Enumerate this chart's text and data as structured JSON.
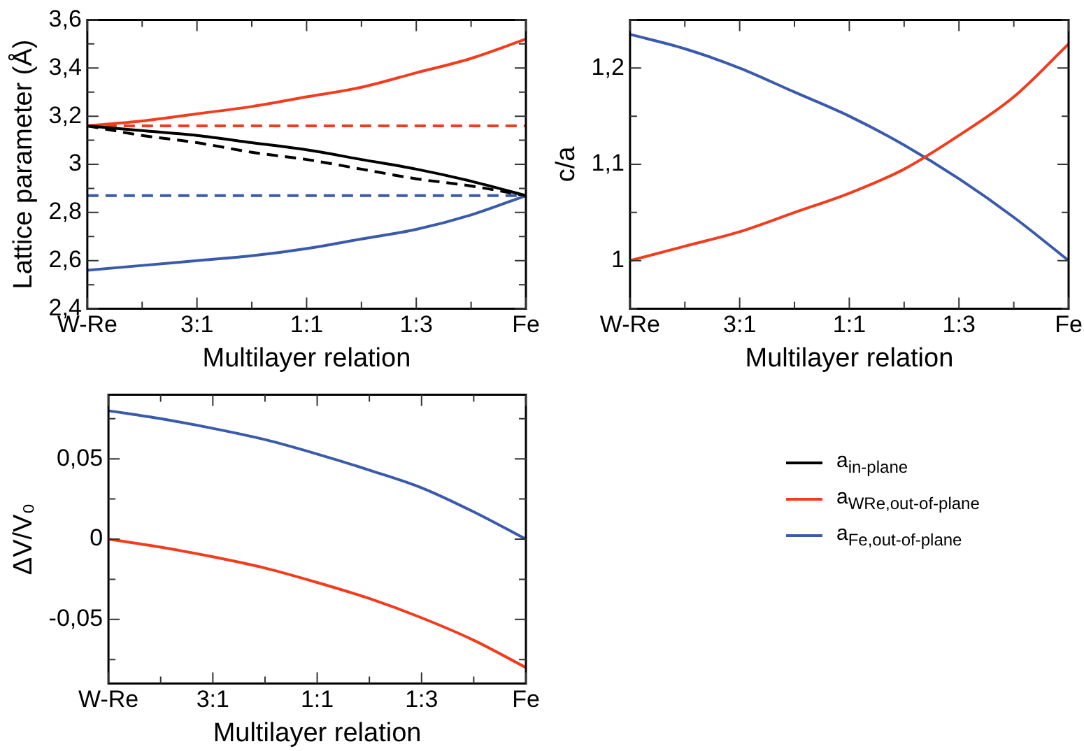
{
  "chart_data": [
    {
      "type": "line",
      "xlabel": "Multilayer relation",
      "ylabel": "Lattice parameter (Å)",
      "marker": "none",
      "grid": false,
      "legend": "bottom right",
      "categories": [
        "W-Re",
        null,
        "3:1",
        null,
        "1:1",
        null,
        "1:3",
        null,
        "Fe"
      ],
      "ylim": [
        2.4,
        3.6
      ],
      "yticks": [
        {
          "value": 2.4,
          "label": "2,4"
        },
        {
          "value": 2.5,
          "label": null
        },
        {
          "value": 2.6,
          "label": "2,6"
        },
        {
          "value": 2.7,
          "label": null
        },
        {
          "value": 2.8,
          "label": "2,8"
        },
        {
          "value": 2.9,
          "label": null
        },
        3,
        {
          "value": 3.1,
          "label": null
        },
        {
          "value": 3.2,
          "label": "3,2"
        },
        {
          "value": 3.3,
          "label": null
        },
        {
          "value": 3.4,
          "label": "3,4"
        },
        {
          "value": 3.5,
          "label": null
        },
        {
          "value": 3.6,
          "label": "3,6"
        }
      ],
      "series": [
        {
          "name": "a$_{in-plane}$",
          "color": "#000000",
          "values": [
            3.16,
            3.14,
            3.12,
            3.09,
            3.06,
            3.02,
            2.98,
            2.93,
            2.87
          ]
        },
        {
          "name": "a$_{WRe,out-of-plane}$",
          "color": "#f23c1e",
          "values": [
            3.16,
            3.18,
            3.21,
            3.24,
            3.28,
            3.32,
            3.38,
            3.44,
            3.52
          ]
        },
        {
          "name": "a$_{Fe,out-of-plane}$",
          "color": "#3a5bab",
          "values": [
            2.56,
            2.58,
            2.6,
            2.62,
            2.65,
            2.69,
            2.73,
            2.79,
            2.87
          ]
        },
        {
          "color": "#000000",
          "line_style": "dashed",
          "values": [
            3.16,
            3.12,
            3.09,
            3.05,
            3.02,
            2.98,
            2.94,
            2.91,
            2.87
          ]
        },
        {
          "color": "#f23c1e",
          "line_style": "dashed",
          "values": [
            3.16,
            3.16,
            3.16,
            3.16,
            3.16,
            3.16,
            3.16,
            3.16,
            3.16
          ]
        },
        {
          "color": "#3a5bab",
          "line_style": "dashed",
          "values": [
            2.87,
            2.87,
            2.87,
            2.87,
            2.87,
            2.87,
            2.87,
            2.87,
            2.87
          ]
        }
      ]
    },
    {
      "type": "line",
      "xlabel": "Multilayer relation",
      "ylabel": "c/a",
      "marker": "none",
      "grid": false,
      "categories": [
        "W-Re",
        null,
        "3:1",
        null,
        "1:1",
        null,
        "1:3",
        null,
        "Fe"
      ],
      "ylim": [
        0.95,
        1.25
      ],
      "yticks": [
        {
          "value": 0.95,
          "label": null
        },
        1,
        {
          "value": 1.05,
          "label": null
        },
        {
          "value": 1.1,
          "label": "1,1"
        },
        {
          "value": 1.15,
          "label": null
        },
        {
          "value": 1.2,
          "label": "1,2"
        },
        {
          "value": 1.25,
          "label": null
        }
      ],
      "series": [
        {
          "color": "#f23c1e",
          "values": [
            1.0,
            1.015,
            1.03,
            1.05,
            1.07,
            1.095,
            1.13,
            1.17,
            1.225
          ]
        },
        {
          "color": "#3a5bab",
          "values": [
            1.235,
            1.22,
            1.2,
            1.175,
            1.15,
            1.12,
            1.085,
            1.045,
            1.0
          ]
        }
      ]
    },
    {
      "type": "line",
      "xlabel": "Multilayer relation",
      "ylabel": "ΔV/V₀",
      "marker": "none",
      "grid": false,
      "categories": [
        "W-Re",
        null,
        "3:1",
        null,
        "1:1",
        null,
        "1:3",
        null,
        "Fe"
      ],
      "ylim": [
        -0.09,
        0.09
      ],
      "yticks": [
        {
          "value": -0.075,
          "label": null
        },
        {
          "value": -0.05,
          "label": "-0,05"
        },
        {
          "value": -0.025,
          "label": null
        },
        0,
        {
          "value": 0.025,
          "label": null
        },
        {
          "value": 0.05,
          "label": "0,05"
        },
        {
          "value": 0.075,
          "label": null
        }
      ],
      "series": [
        {
          "color": "#3a5bab",
          "values": [
            0.08,
            0.075,
            0.069,
            0.062,
            0.053,
            0.043,
            0.032,
            0.017,
            0
          ]
        },
        {
          "color": "#f23c1e",
          "values": [
            0,
            -0.005,
            -0.011,
            -0.018,
            -0.027,
            -0.037,
            -0.049,
            -0.063,
            -0.08
          ]
        }
      ]
    }
  ]
}
